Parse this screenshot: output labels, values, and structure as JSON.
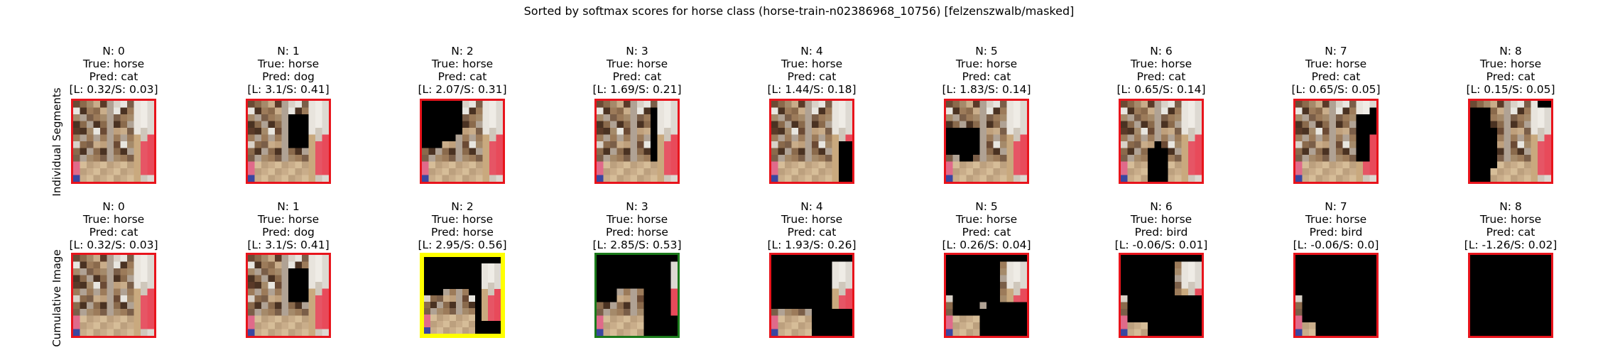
{
  "figure": {
    "title": "Sorted by softmax scores for horse class (horse-train-n02386968_10756) [felzenszwalb/masked]",
    "row_labels": [
      "Individual Segments",
      "Cumulative Image"
    ],
    "colors": {
      "default_border": "#e8141c",
      "best_border": "#ffff00",
      "correct_border": "#1a7a1a",
      "mask": "#000000"
    }
  },
  "rows": [
    {
      "panels": [
        {
          "n": "N: 0",
          "true": "True: horse",
          "pred": "Pred: cat",
          "scores": "[L: 0.32/S: 0.03]",
          "border": "red"
        },
        {
          "n": "N: 1",
          "true": "True: horse",
          "pred": "Pred: dog",
          "scores": "[L: 3.1/S: 0.41]",
          "border": "red"
        },
        {
          "n": "N: 2",
          "true": "True: horse",
          "pred": "Pred: cat",
          "scores": "[L: 2.07/S: 0.31]",
          "border": "red"
        },
        {
          "n": "N: 3",
          "true": "True: horse",
          "pred": "Pred: cat",
          "scores": "[L: 1.69/S: 0.21]",
          "border": "red"
        },
        {
          "n": "N: 4",
          "true": "True: horse",
          "pred": "Pred: cat",
          "scores": "[L: 1.44/S: 0.18]",
          "border": "red"
        },
        {
          "n": "N: 5",
          "true": "True: horse",
          "pred": "Pred: cat",
          "scores": "[L: 1.83/S: 0.14]",
          "border": "red"
        },
        {
          "n": "N: 6",
          "true": "True: horse",
          "pred": "Pred: cat",
          "scores": "[L: 0.65/S: 0.14]",
          "border": "red"
        },
        {
          "n": "N: 7",
          "true": "True: horse",
          "pred": "Pred: cat",
          "scores": "[L: 0.65/S: 0.05]",
          "border": "red"
        },
        {
          "n": "N: 8",
          "true": "True: horse",
          "pred": "Pred: cat",
          "scores": "[L: 0.15/S: 0.05]",
          "border": "red"
        }
      ]
    },
    {
      "panels": [
        {
          "n": "N: 0",
          "true": "True: horse",
          "pred": "Pred: cat",
          "scores": "[L: 0.32/S: 0.03]",
          "border": "red"
        },
        {
          "n": "N: 1",
          "true": "True: horse",
          "pred": "Pred: dog",
          "scores": "[L: 3.1/S: 0.41]",
          "border": "red"
        },
        {
          "n": "N: 2",
          "true": "True: horse",
          "pred": "Pred: horse",
          "scores": "[L: 2.95/S: 0.56]",
          "border": "yellow"
        },
        {
          "n": "N: 3",
          "true": "True: horse",
          "pred": "Pred: horse",
          "scores": "[L: 2.85/S: 0.53]",
          "border": "green"
        },
        {
          "n": "N: 4",
          "true": "True: horse",
          "pred": "Pred: cat",
          "scores": "[L: 1.93/S: 0.26]",
          "border": "red"
        },
        {
          "n": "N: 5",
          "true": "True: horse",
          "pred": "Pred: cat",
          "scores": "[L: 0.26/S: 0.04]",
          "border": "red"
        },
        {
          "n": "N: 6",
          "true": "True: horse",
          "pred": "Pred: bird",
          "scores": "[L: -0.06/S: 0.01]",
          "border": "red"
        },
        {
          "n": "N: 7",
          "true": "True: horse",
          "pred": "Pred: bird",
          "scores": "[L: -0.06/S: 0.0]",
          "border": "red"
        },
        {
          "n": "N: 8",
          "true": "True: horse",
          "pred": "Pred: cat",
          "scores": "[L: -1.26/S: 0.02]",
          "border": "red"
        }
      ]
    }
  ]
}
